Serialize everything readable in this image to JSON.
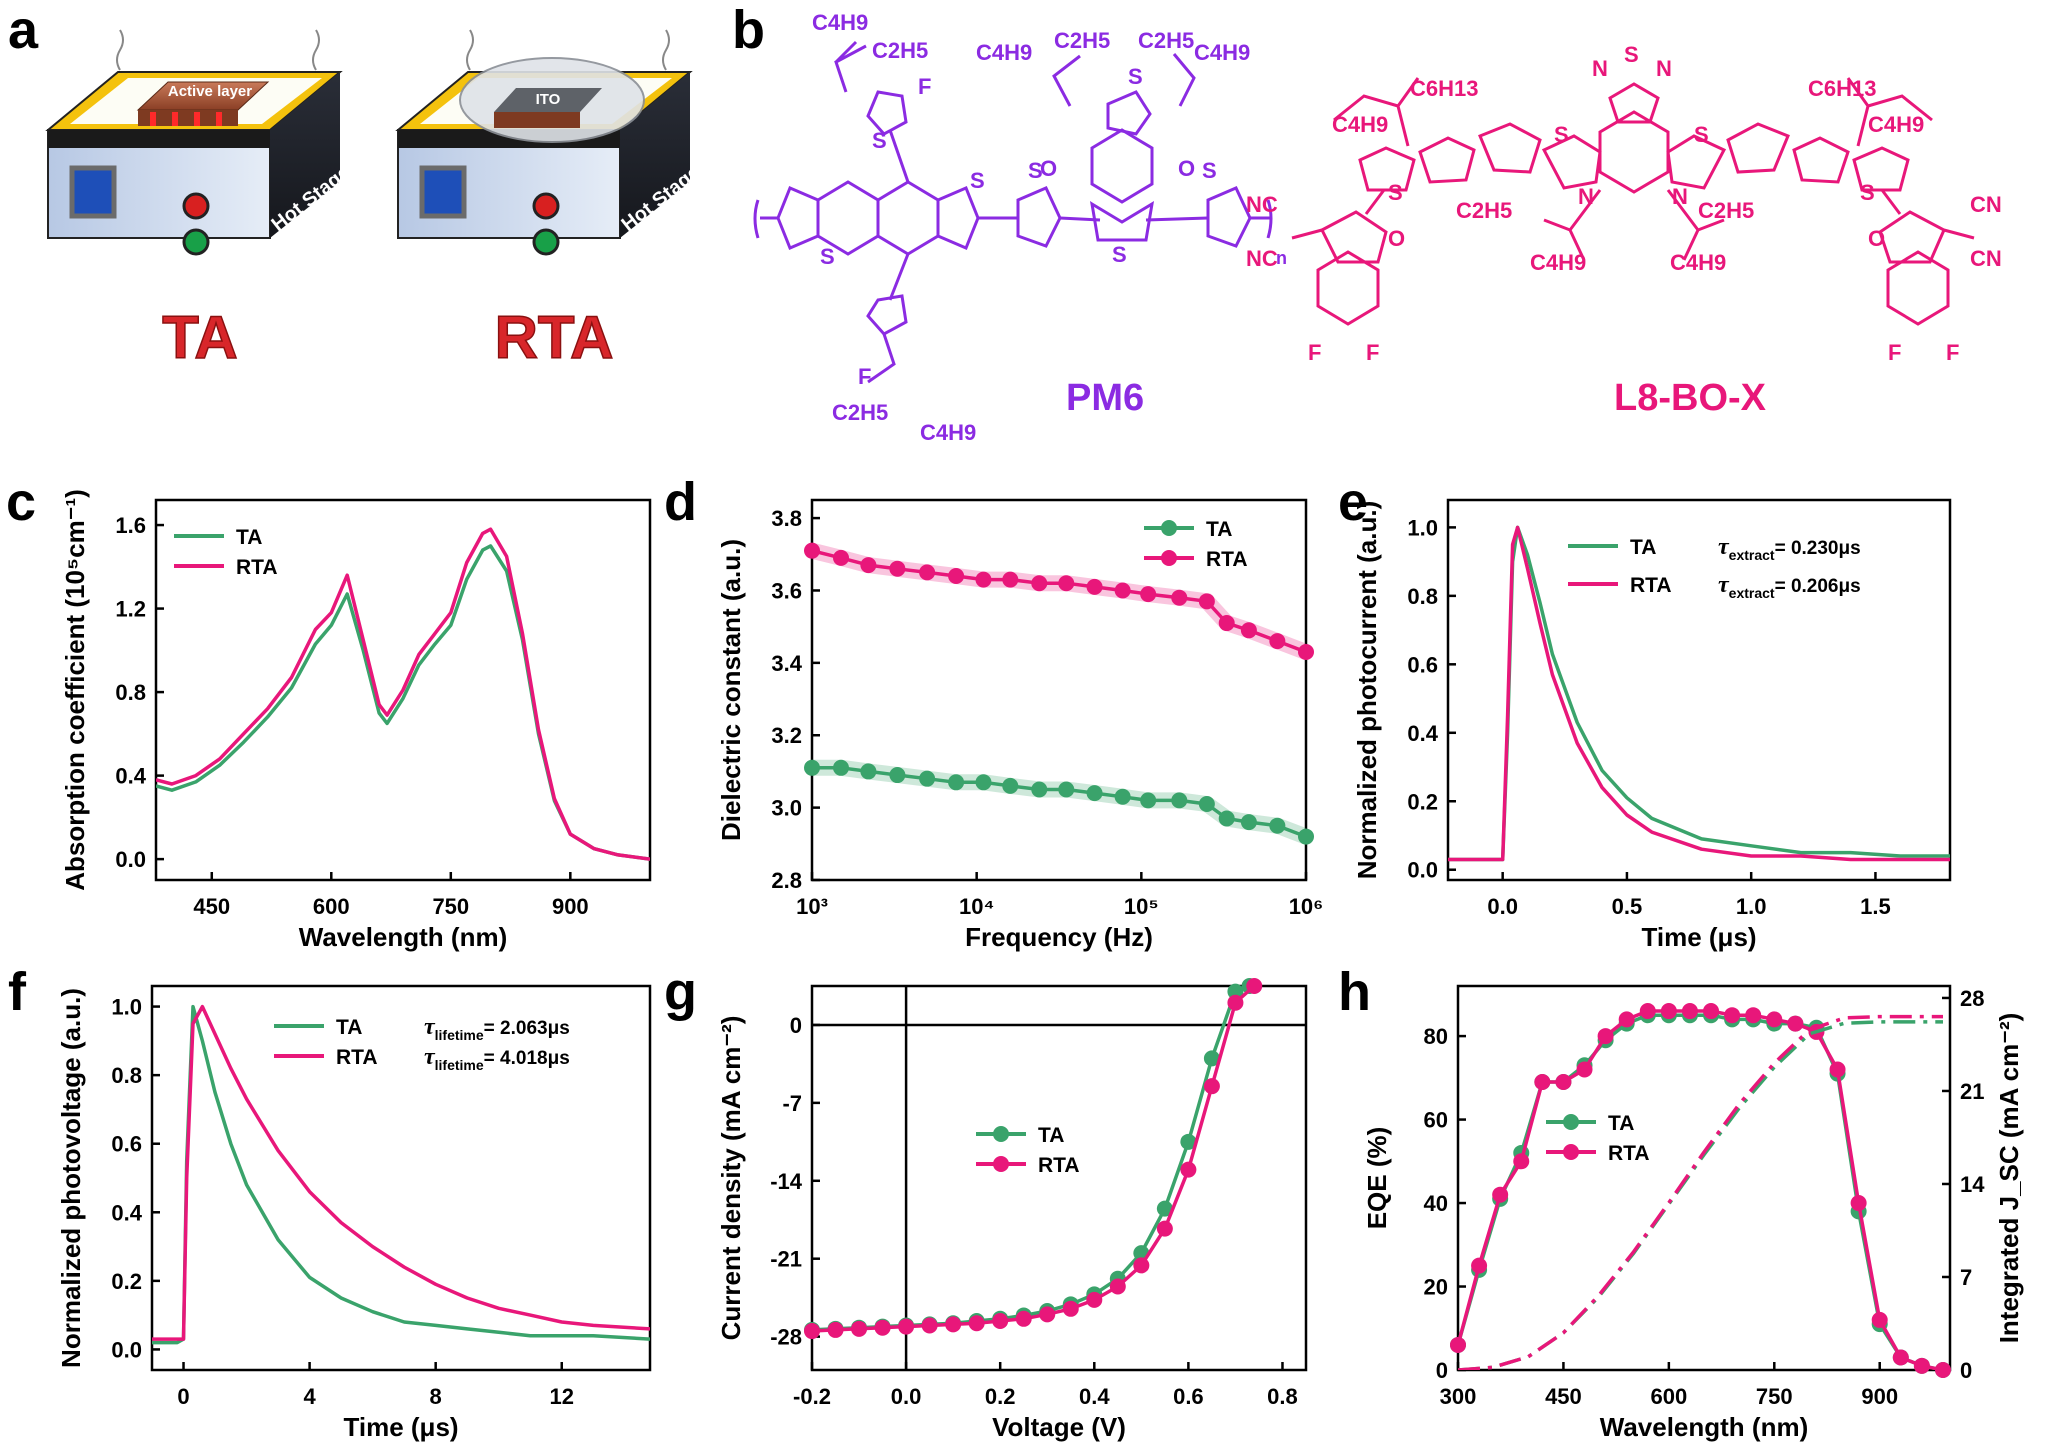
{
  "panel_labels": {
    "a": "a",
    "b": "b",
    "c": "c",
    "d": "d",
    "e": "e",
    "f": "f",
    "g": "g",
    "h": "h"
  },
  "colors": {
    "ta": "#3aa36b",
    "rta": "#e8177a",
    "pm6": "#8b2be2",
    "l8": "#e8177a",
    "ta_label": "#d8262a"
  },
  "schematic": {
    "ta": {
      "top_label": "Active layer",
      "side_label": "Hot Stage",
      "caption": "TA"
    },
    "rta": {
      "top_label": "ITO",
      "side_label": "Hot Stage",
      "caption": "RTA"
    }
  },
  "molecules": {
    "pm6": {
      "name": "PM6",
      "subs": [
        "C4H9",
        "C2H5",
        "C4H9",
        "C2H5",
        "C2H5",
        "C4H9",
        "C2H5",
        "C4H9"
      ],
      "atoms": [
        "F",
        "S",
        "S",
        "S",
        "S",
        "O",
        "O",
        "S",
        "S",
        "S",
        "F",
        "n"
      ]
    },
    "l8": {
      "name": "L8-BO-X",
      "subs": [
        "C6H13",
        "C4H9",
        "C6H13",
        "C4H9",
        "C2H5",
        "C2H5",
        "C4H9",
        "C4H9",
        "NC",
        "NC",
        "CN",
        "CN"
      ],
      "atoms": [
        "N",
        "S",
        "N",
        "S",
        "S",
        "S",
        "S",
        "N",
        "N",
        "O",
        "O",
        "F",
        "F",
        "F",
        "F"
      ]
    }
  },
  "chart_data": [
    {
      "panel": "c",
      "type": "line",
      "xlabel": "Wavelength (nm)",
      "ylabel": "Absorption coefficient (10⁵cm⁻¹)",
      "xlim": [
        380,
        1000
      ],
      "ylim": [
        -0.1,
        1.72
      ],
      "xticks": [
        450,
        600,
        750,
        900
      ],
      "yticks": [
        0.0,
        0.4,
        0.8,
        1.2,
        1.6
      ],
      "xtick_labels": [
        "450",
        "600",
        "750",
        "900"
      ],
      "ytick_labels": [
        "0.0",
        "0.4",
        "0.8",
        "1.2",
        "1.6"
      ],
      "legend": "top-left",
      "series": [
        {
          "name": "TA",
          "color": "#3aa36b",
          "x": [
            380,
            400,
            430,
            460,
            490,
            520,
            550,
            580,
            600,
            620,
            640,
            660,
            670,
            690,
            710,
            730,
            750,
            770,
            790,
            800,
            820,
            840,
            860,
            880,
            900,
            930,
            960,
            1000
          ],
          "y": [
            0.35,
            0.33,
            0.37,
            0.45,
            0.56,
            0.68,
            0.82,
            1.03,
            1.12,
            1.27,
            1.0,
            0.7,
            0.65,
            0.77,
            0.93,
            1.03,
            1.12,
            1.34,
            1.48,
            1.5,
            1.38,
            1.05,
            0.6,
            0.28,
            0.12,
            0.05,
            0.02,
            0.0
          ]
        },
        {
          "name": "RTA",
          "color": "#e8177a",
          "x": [
            380,
            400,
            430,
            460,
            490,
            520,
            550,
            580,
            600,
            620,
            640,
            660,
            670,
            690,
            710,
            730,
            750,
            770,
            790,
            800,
            820,
            840,
            860,
            880,
            900,
            930,
            960,
            1000
          ],
          "y": [
            0.38,
            0.36,
            0.4,
            0.48,
            0.6,
            0.72,
            0.87,
            1.1,
            1.18,
            1.36,
            1.05,
            0.74,
            0.69,
            0.81,
            0.98,
            1.08,
            1.18,
            1.42,
            1.56,
            1.58,
            1.45,
            1.08,
            0.62,
            0.29,
            0.12,
            0.05,
            0.02,
            0.0
          ]
        }
      ]
    },
    {
      "panel": "d",
      "type": "line",
      "xscale": "log",
      "xlabel": "Frequency (Hz)",
      "ylabel": "Dielectric constant (a.u.)",
      "xlim": [
        1000,
        1000000
      ],
      "ylim": [
        2.8,
        3.85
      ],
      "xticks": [
        1000,
        10000,
        100000,
        1000000
      ],
      "yticks": [
        2.8,
        3.0,
        3.2,
        3.4,
        3.6,
        3.8
      ],
      "xtick_labels": [
        "10³",
        "10⁴",
        "10⁵",
        "10⁶"
      ],
      "ytick_labels": [
        "2.8",
        "3.0",
        "3.2",
        "3.4",
        "3.6",
        "3.8"
      ],
      "legend": "top-right",
      "series": [
        {
          "name": "TA",
          "color": "#3aa36b",
          "x": [
            1000,
            1500,
            2200,
            3300,
            5000,
            7500,
            11000,
            16000,
            24000,
            35000,
            52000,
            77000,
            110000,
            170000,
            250000,
            330000,
            450000,
            670000,
            1000000
          ],
          "y": [
            3.11,
            3.11,
            3.1,
            3.09,
            3.08,
            3.07,
            3.07,
            3.06,
            3.05,
            3.05,
            3.04,
            3.03,
            3.02,
            3.02,
            3.01,
            2.97,
            2.96,
            2.95,
            2.92
          ]
        },
        {
          "name": "RTA",
          "color": "#e8177a",
          "x": [
            1000,
            1500,
            2200,
            3300,
            5000,
            7500,
            11000,
            16000,
            24000,
            35000,
            52000,
            77000,
            110000,
            170000,
            250000,
            330000,
            450000,
            670000,
            1000000
          ],
          "y": [
            3.71,
            3.69,
            3.67,
            3.66,
            3.65,
            3.64,
            3.63,
            3.63,
            3.62,
            3.62,
            3.61,
            3.6,
            3.59,
            3.58,
            3.57,
            3.51,
            3.49,
            3.46,
            3.43
          ]
        }
      ]
    },
    {
      "panel": "e",
      "type": "line",
      "xlabel": "Time (μs)",
      "ylabel": "Normalized photocurrent (a.u.)",
      "xlim": [
        -0.22,
        1.8
      ],
      "ylim": [
        -0.03,
        1.08
      ],
      "xticks": [
        0.0,
        0.5,
        1.0,
        1.5
      ],
      "yticks": [
        0.0,
        0.2,
        0.4,
        0.6,
        0.8,
        1.0
      ],
      "xtick_labels": [
        "0.0",
        "0.5",
        "1.0",
        "1.5"
      ],
      "ytick_labels": [
        "0.0",
        "0.2",
        "0.4",
        "0.6",
        "0.8",
        "1.0"
      ],
      "legend": "top-right",
      "annotations": [
        {
          "sym": "τ",
          "sub": "extract",
          "val": "= 0.230μs"
        },
        {
          "sym": "τ",
          "sub": "extract",
          "val": "= 0.206μs"
        }
      ],
      "series": [
        {
          "name": "TA",
          "color": "#3aa36b",
          "x": [
            -0.22,
            -0.1,
            0.0,
            0.02,
            0.04,
            0.06,
            0.1,
            0.15,
            0.2,
            0.3,
            0.4,
            0.5,
            0.6,
            0.8,
            1.0,
            1.2,
            1.4,
            1.6,
            1.8
          ],
          "y": [
            0.03,
            0.03,
            0.03,
            0.4,
            0.9,
            1.0,
            0.92,
            0.78,
            0.63,
            0.43,
            0.29,
            0.21,
            0.15,
            0.09,
            0.07,
            0.05,
            0.05,
            0.04,
            0.04
          ]
        },
        {
          "name": "RTA",
          "color": "#e8177a",
          "x": [
            -0.22,
            -0.1,
            0.0,
            0.02,
            0.04,
            0.06,
            0.1,
            0.15,
            0.2,
            0.3,
            0.4,
            0.5,
            0.6,
            0.8,
            1.0,
            1.2,
            1.4,
            1.6,
            1.8
          ],
          "y": [
            0.03,
            0.03,
            0.03,
            0.45,
            0.95,
            1.0,
            0.88,
            0.72,
            0.57,
            0.37,
            0.24,
            0.16,
            0.11,
            0.06,
            0.04,
            0.04,
            0.03,
            0.03,
            0.03
          ]
        }
      ]
    },
    {
      "panel": "f",
      "type": "line",
      "xlabel": "Time (μs)",
      "ylabel": "Normalized photovoltage (a.u.)",
      "xlim": [
        -1,
        14.8
      ],
      "ylim": [
        -0.06,
        1.06
      ],
      "xticks": [
        0,
        4,
        8,
        12
      ],
      "yticks": [
        0.0,
        0.2,
        0.4,
        0.6,
        0.8,
        1.0
      ],
      "xtick_labels": [
        "0",
        "4",
        "8",
        "12"
      ],
      "ytick_labels": [
        "0.0",
        "0.2",
        "0.4",
        "0.6",
        "0.8",
        "1.0"
      ],
      "legend": "top-right",
      "annotations": [
        {
          "sym": "τ",
          "sub": "lifetime",
          "val": "= 2.063μs"
        },
        {
          "sym": "τ",
          "sub": "lifetime",
          "val": "= 4.018μs"
        }
      ],
      "series": [
        {
          "name": "TA",
          "color": "#3aa36b",
          "x": [
            -1,
            -0.2,
            0.0,
            0.1,
            0.3,
            0.6,
            1.0,
            1.5,
            2,
            3,
            4,
            5,
            6,
            7,
            8,
            9,
            10,
            11,
            12,
            13,
            14.8
          ],
          "y": [
            0.02,
            0.02,
            0.03,
            0.55,
            1.0,
            0.9,
            0.75,
            0.6,
            0.48,
            0.32,
            0.21,
            0.15,
            0.11,
            0.08,
            0.07,
            0.06,
            0.05,
            0.04,
            0.04,
            0.04,
            0.03
          ]
        },
        {
          "name": "RTA",
          "color": "#e8177a",
          "x": [
            -1,
            -0.2,
            0.0,
            0.1,
            0.3,
            0.6,
            1.0,
            1.5,
            2,
            3,
            4,
            5,
            6,
            7,
            8,
            9,
            10,
            11,
            12,
            13,
            14.8
          ],
          "y": [
            0.03,
            0.03,
            0.03,
            0.5,
            0.95,
            1.0,
            0.92,
            0.82,
            0.73,
            0.58,
            0.46,
            0.37,
            0.3,
            0.24,
            0.19,
            0.15,
            0.12,
            0.1,
            0.08,
            0.07,
            0.06
          ]
        }
      ]
    },
    {
      "panel": "g",
      "type": "line",
      "xlabel": "Voltage (V)",
      "ylabel": "Current density (mA cm⁻²)",
      "xlim": [
        -0.2,
        0.85
      ],
      "ylim": [
        -31,
        3.5
      ],
      "xticks": [
        -0.2,
        0.0,
        0.2,
        0.4,
        0.6,
        0.8
      ],
      "yticks": [
        -28,
        -21,
        -14,
        -7,
        0
      ],
      "xtick_labels": [
        "-0.2",
        "0.0",
        "0.2",
        "0.4",
        "0.6",
        "0.8"
      ],
      "ytick_labels": [
        "-28",
        "-21",
        "-14",
        "-7",
        "0"
      ],
      "legend": "center",
      "series": [
        {
          "name": "TA",
          "color": "#3aa36b",
          "x": [
            -0.2,
            -0.15,
            -0.1,
            -0.05,
            0.0,
            0.05,
            0.1,
            0.15,
            0.2,
            0.25,
            0.3,
            0.35,
            0.4,
            0.45,
            0.5,
            0.55,
            0.6,
            0.65,
            0.7,
            0.73
          ],
          "y": [
            -27.4,
            -27.3,
            -27.2,
            -27.1,
            -27.0,
            -26.9,
            -26.8,
            -26.6,
            -26.4,
            -26.1,
            -25.7,
            -25.1,
            -24.2,
            -22.8,
            -20.5,
            -16.5,
            -10.5,
            -3.0,
            3.0,
            3.5
          ]
        },
        {
          "name": "RTA",
          "color": "#e8177a",
          "x": [
            -0.2,
            -0.15,
            -0.1,
            -0.05,
            0.0,
            0.05,
            0.1,
            0.15,
            0.2,
            0.25,
            0.3,
            0.35,
            0.4,
            0.45,
            0.5,
            0.55,
            0.6,
            0.65,
            0.7,
            0.74
          ],
          "y": [
            -27.5,
            -27.4,
            -27.3,
            -27.2,
            -27.1,
            -27.0,
            -26.9,
            -26.8,
            -26.6,
            -26.4,
            -26.0,
            -25.5,
            -24.7,
            -23.5,
            -21.6,
            -18.3,
            -13.0,
            -5.5,
            2.0,
            3.5
          ]
        }
      ]
    },
    {
      "panel": "h",
      "type": "line",
      "xlabel": "Wavelength (nm)",
      "ylabel": "EQE (%)",
      "ylabel_right": "Integrated J_SC (mA cm⁻²)",
      "xlim": [
        300,
        1000
      ],
      "ylim": [
        0,
        92
      ],
      "ylim_right": [
        0,
        28.9
      ],
      "xticks": [
        300,
        450,
        600,
        750,
        900
      ],
      "yticks": [
        0,
        20,
        40,
        60,
        80
      ],
      "yticks_right": [
        0,
        7,
        14,
        21,
        28
      ],
      "xtick_labels": [
        "300",
        "450",
        "600",
        "750",
        "900"
      ],
      "ytick_labels": [
        "0",
        "20",
        "40",
        "60",
        "80"
      ],
      "ytick_labels_right": [
        "0",
        "7",
        "14",
        "21",
        "28"
      ],
      "legend": "center-left",
      "series": [
        {
          "name": "TA",
          "color": "#3aa36b",
          "x": [
            300,
            330,
            360,
            390,
            420,
            450,
            480,
            510,
            540,
            570,
            600,
            630,
            660,
            690,
            720,
            750,
            780,
            810,
            840,
            870,
            900,
            930,
            960,
            990
          ],
          "y": [
            6,
            24,
            41,
            52,
            69,
            69,
            73,
            79,
            83,
            85,
            85,
            85,
            85,
            84,
            84,
            83,
            83,
            82,
            71,
            38,
            11,
            3,
            1,
            0
          ]
        },
        {
          "name": "RTA",
          "color": "#e8177a",
          "x": [
            300,
            330,
            360,
            390,
            420,
            450,
            480,
            510,
            540,
            570,
            600,
            630,
            660,
            690,
            720,
            750,
            780,
            810,
            840,
            870,
            900,
            930,
            960,
            990
          ],
          "y": [
            6,
            25,
            42,
            50,
            69,
            69,
            72,
            80,
            84,
            86,
            86,
            86,
            86,
            85,
            85,
            84,
            83,
            81,
            72,
            40,
            12,
            3,
            1,
            0
          ]
        },
        {
          "name": "TA",
          "color": "#3aa36b",
          "dashed": true,
          "axis": "right",
          "x": [
            300,
            350,
            400,
            450,
            500,
            550,
            600,
            650,
            700,
            750,
            800,
            850,
            900,
            950,
            990
          ],
          "y": [
            0,
            0.2,
            1.0,
            2.8,
            5.5,
            8.8,
            12.5,
            16.2,
            19.7,
            22.8,
            25.3,
            26.1,
            26.2,
            26.2,
            26.2
          ]
        },
        {
          "name": "RTA",
          "color": "#e8177a",
          "dashed": true,
          "axis": "right",
          "x": [
            300,
            350,
            400,
            450,
            500,
            550,
            600,
            650,
            700,
            750,
            800,
            850,
            900,
            950,
            990
          ],
          "y": [
            0,
            0.2,
            1.0,
            2.8,
            5.6,
            8.9,
            12.6,
            16.4,
            20.0,
            23.1,
            25.6,
            26.5,
            26.6,
            26.6,
            26.6
          ]
        }
      ]
    }
  ]
}
